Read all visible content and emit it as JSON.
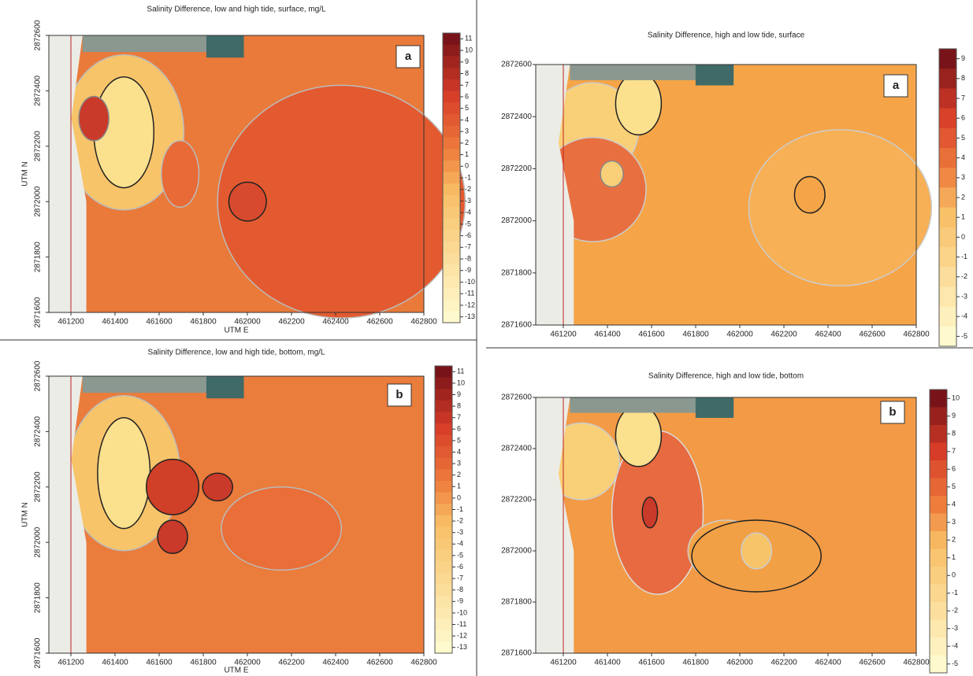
{
  "chart_data": [
    {
      "type": "contour",
      "title": "Salinity Difference, low and high tide, surface, mg/L",
      "panel_label": "a",
      "x_label": "UTM E",
      "y_label": "UTM N",
      "xlim": [
        461100,
        462800
      ],
      "ylim": [
        2871600,
        2872600
      ],
      "xticks": [
        461200,
        461400,
        461600,
        461800,
        462000,
        462200,
        462400,
        462600,
        462800
      ],
      "yticks": [
        2871600,
        2871800,
        2872000,
        2872200,
        2872400,
        2872600
      ],
      "colorbar_ticks": [
        11,
        10,
        9,
        8,
        7,
        6,
        5,
        4,
        3,
        2,
        1,
        0,
        -1,
        -2,
        -3,
        -4,
        -5,
        -6,
        -7,
        -8,
        -9,
        -10,
        -11,
        -12,
        -13
      ]
    },
    {
      "type": "contour",
      "title": "Salinity Difference, low and high tide, bottom, mg/L",
      "panel_label": "b",
      "x_label": "UTM E",
      "y_label": "UTM N",
      "xlim": [
        461100,
        462800
      ],
      "ylim": [
        2871600,
        2872600
      ],
      "xticks": [
        461200,
        461400,
        461600,
        461800,
        462000,
        462200,
        462400,
        462600,
        462800
      ],
      "yticks": [
        2871600,
        2871800,
        2872000,
        2872200,
        2872400,
        2872600
      ],
      "colorbar_ticks": [
        11,
        10,
        9,
        8,
        7,
        6,
        5,
        4,
        3,
        2,
        1,
        0,
        -1,
        -2,
        -3,
        -4,
        -5,
        -6,
        -7,
        -8,
        -9,
        -10,
        -11,
        -12,
        -13
      ]
    },
    {
      "type": "contour",
      "title": "Salinity Difference, high and low tide, surface",
      "panel_label": "a",
      "xlim": [
        461075,
        462800
      ],
      "ylim": [
        2871600,
        2872600
      ],
      "xticks": [
        461200,
        461400,
        461600,
        461800,
        462000,
        462200,
        462400,
        462600,
        462800
      ],
      "yticks": [
        2871600,
        2871800,
        2872000,
        2872200,
        2872400,
        2872600
      ],
      "colorbar_ticks": [
        9,
        8,
        7,
        6,
        5,
        4,
        3,
        2,
        1,
        0,
        -1,
        -2,
        -3,
        -4,
        -5
      ]
    },
    {
      "type": "contour",
      "title": "Salinity Difference, high and low tide, bottom",
      "panel_label": "b",
      "xlim": [
        461075,
        462800
      ],
      "ylim": [
        2871600,
        2872600
      ],
      "xticks": [
        461200,
        461400,
        461600,
        461800,
        462000,
        462200,
        462400,
        462600,
        462800
      ],
      "yticks": [
        2871600,
        2871800,
        2872000,
        2872200,
        2872400,
        2872600
      ],
      "colorbar_ticks": [
        10,
        9,
        8,
        7,
        6,
        5,
        4,
        3,
        2,
        1,
        0,
        -1,
        -2,
        -3,
        -4,
        -5
      ]
    }
  ]
}
